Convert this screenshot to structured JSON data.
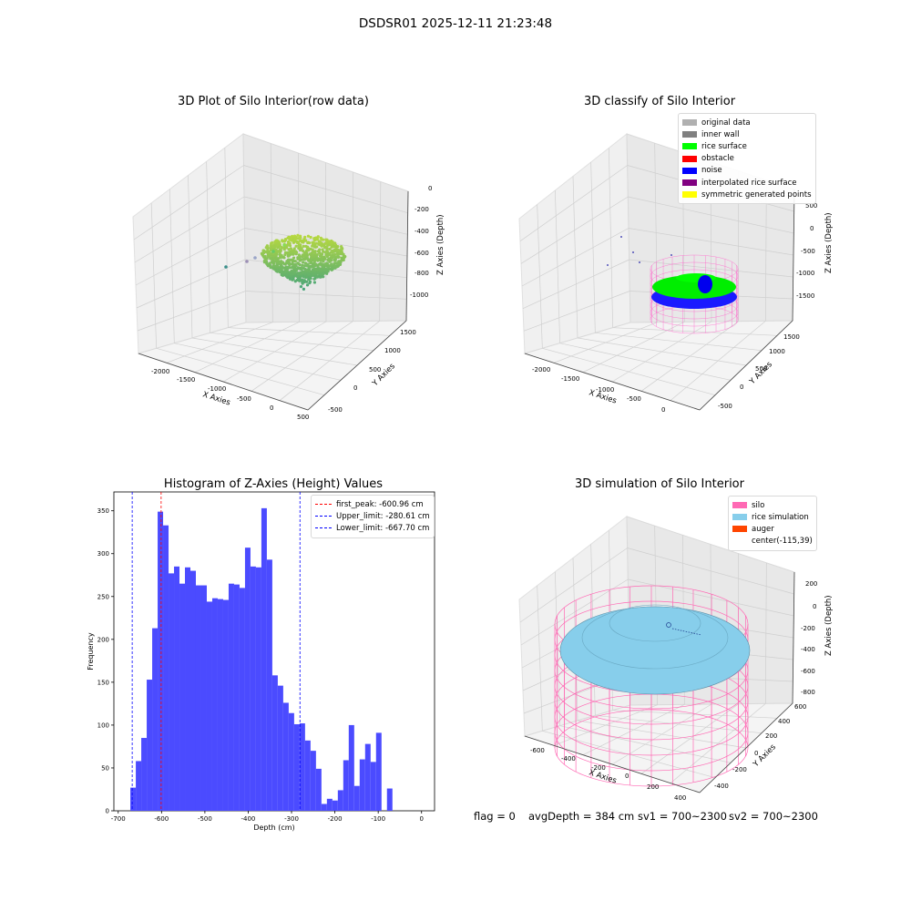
{
  "suptitle": "DSDSR01 2025-12-11 21:23:48",
  "footer": {
    "flag": "flag = 0",
    "avgDepth": "avgDepth = 384 cm",
    "sv1": "sv1 = 700~2300",
    "sv2": "sv2 = 700~2300"
  },
  "plot1": {
    "title": "3D Plot of Silo Interior(row data)",
    "xlabel": "X Axies",
    "ylabel": "Y Axies",
    "zlabel": "Z Axies (Depth)",
    "xticks": [
      "-2000",
      "-1500",
      "-1000",
      "-500",
      "0",
      "500"
    ],
    "yticks": [
      "-500",
      "0",
      "500",
      "1000",
      "1500"
    ],
    "zticks": [
      "0",
      "-200",
      "-400",
      "-600",
      "-800",
      "-1000"
    ]
  },
  "plot2": {
    "title": "3D classify of Silo Interior",
    "xlabel": "X Axies",
    "ylabel": "Y Axies",
    "zlabel": "Z Axies (Depth)",
    "xticks": [
      "-2000",
      "-1500",
      "-1000",
      "-500",
      "0"
    ],
    "yticks": [
      "-500",
      "0",
      "500",
      "1000",
      "1500"
    ],
    "zticks": [
      "500",
      "0",
      "-500",
      "-1000",
      "-1500"
    ],
    "legend": [
      {
        "label": "original data",
        "color": "#b0b0b0"
      },
      {
        "label": "inner wall",
        "color": "#808080"
      },
      {
        "label": "rice surface",
        "color": "#00ff00"
      },
      {
        "label": "obstacle",
        "color": "#ff0000"
      },
      {
        "label": "noise",
        "color": "#0000ff"
      },
      {
        "label": "interpolated rice surface",
        "color": "#800080"
      },
      {
        "label": "symmetric generated points",
        "color": "#ffff00"
      }
    ]
  },
  "chart_data": {
    "type": "bar",
    "title": "Histogram of Z-Axies (Height) Values",
    "xlabel": "Depth (cm)",
    "ylabel": "Frequency",
    "xlim": [
      -710,
      30
    ],
    "ylim": [
      0,
      372
    ],
    "xticks": [
      -700,
      -600,
      -500,
      -400,
      -300,
      -200,
      -100,
      0
    ],
    "yticks": [
      0,
      50,
      100,
      150,
      200,
      250,
      300,
      350
    ],
    "bin_edges_start": -672,
    "bin_width": 12.6,
    "values": [
      27,
      58,
      85,
      153,
      213,
      349,
      333,
      277,
      285,
      265,
      284,
      280,
      263,
      263,
      244,
      248,
      247,
      246,
      265,
      264,
      260,
      307,
      285,
      284,
      353,
      293,
      158,
      146,
      126,
      114,
      101,
      102,
      82,
      70,
      49,
      8,
      14,
      12,
      24,
      59,
      100,
      29,
      60,
      78,
      57,
      91,
      0,
      26
    ],
    "vlines": [
      {
        "label": "first_peak: -600.96 cm",
        "x": -600.96,
        "color": "#ff0000"
      },
      {
        "label": "Upper_limit: -280.61 cm",
        "x": -280.61,
        "color": "#0000ff"
      },
      {
        "label": "Lower_limit: -667.70 cm",
        "x": -667.7,
        "color": "#0000ff"
      }
    ],
    "bar_color": "#4b4bff",
    "legend_position": "top-right"
  },
  "plot4": {
    "title": "3D simulation of Silo Interior",
    "xlabel": "X Axies",
    "ylabel": "Y Axies",
    "zlabel": "Z Axies (Depth)",
    "xticks": [
      "-600",
      "-400",
      "-200",
      "0",
      "200",
      "400"
    ],
    "yticks": [
      "-400",
      "-200",
      "0",
      "200",
      "400",
      "600"
    ],
    "zticks": [
      "200",
      "0",
      "-200",
      "-400",
      "-600",
      "-800"
    ],
    "legend": [
      {
        "label": "silo",
        "color": "#ff69b4"
      },
      {
        "label": "rice simulation",
        "color": "#87ceeb"
      },
      {
        "label": "auger",
        "color": "#ff4500"
      },
      {
        "label": "center(-115,39)",
        "color": ""
      }
    ]
  }
}
